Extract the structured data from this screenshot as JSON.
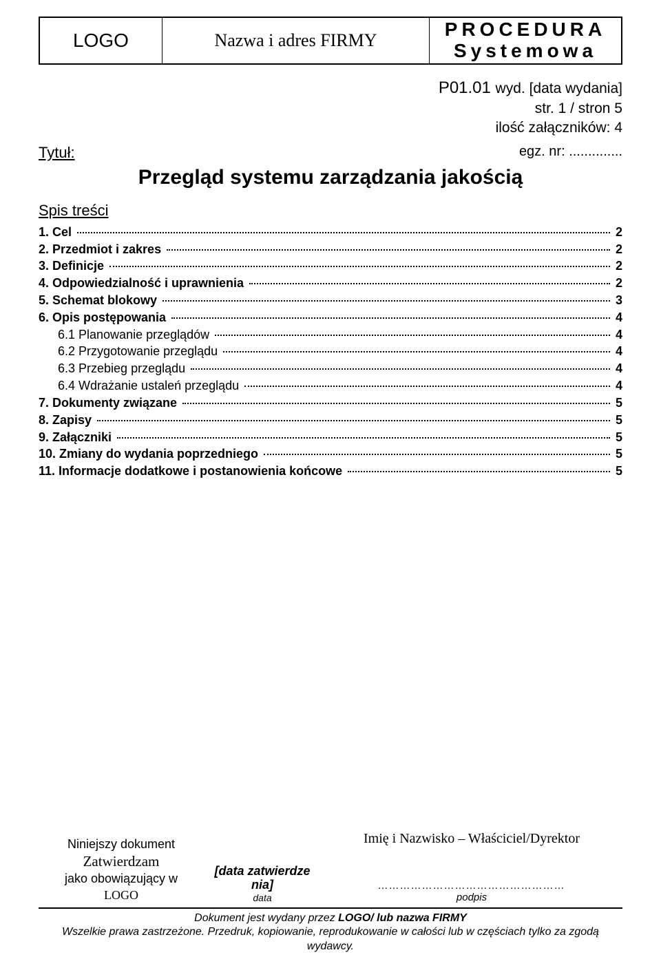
{
  "header": {
    "logo": "LOGO",
    "company": "Nazwa i adres FIRMY",
    "right_line1": "PROCEDURA",
    "right_line2": "Systemowa"
  },
  "meta": {
    "doc_no_prefix": "P01.01 ",
    "wyd_label": "wyd. ",
    "wyd_value": "[data wydania]",
    "page_line": "str. 1 / stron 5",
    "attachments_line": "ilość załączników: 4"
  },
  "title_block": {
    "tytul_label": "Tytuł:",
    "egz_label": "egz. nr: ..............",
    "main_title": "Przegląd systemu zarządzania jakością",
    "spis_label": "Spis treści"
  },
  "toc": [
    {
      "label": "1. Cel",
      "page": "2",
      "level": "top"
    },
    {
      "label": "2. Przedmiot i zakres",
      "page": "2",
      "level": "top"
    },
    {
      "label": "3. Definicje",
      "page": "2",
      "level": "top"
    },
    {
      "label": "4. Odpowiedzialność i uprawnienia",
      "page": "2",
      "level": "top"
    },
    {
      "label": "5. Schemat blokowy",
      "page": "3",
      "level": "top"
    },
    {
      "label": "6. Opis postępowania",
      "page": "4",
      "level": "top"
    },
    {
      "label": "6.1 Planowanie przeglądów",
      "page": "4",
      "level": "sub"
    },
    {
      "label": "6.2 Przygotowanie przeglądu",
      "page": "4",
      "level": "sub"
    },
    {
      "label": "6.3 Przebieg przeglądu",
      "page": "4",
      "level": "sub"
    },
    {
      "label": "6.4 Wdrażanie ustaleń przeglądu",
      "page": "4",
      "level": "sub"
    },
    {
      "label": "7. Dokumenty związane",
      "page": "5",
      "level": "top"
    },
    {
      "label": "8. Zapisy",
      "page": "5",
      "level": "top"
    },
    {
      "label": "9. Załączniki",
      "page": "5",
      "level": "top"
    },
    {
      "label": "10. Zmiany do wydania poprzedniego",
      "page": "5",
      "level": "top"
    },
    {
      "label": "11. Informacje dodatkowe i postanowienia końcowe",
      "page": "5",
      "level": "top"
    }
  ],
  "approval": {
    "left_line1": "Niniejszy dokument",
    "left_line2": "Zatwierdzam",
    "left_line3": "jako obowiązujący w",
    "left_line4": "LOGO",
    "mid_placeholder": "[data zatwierdze nia]",
    "mid_label": "data",
    "right_name": "Imię i Nazwisko – Właściciel/Dyrektor",
    "sig_line": "……………………………………………",
    "sig_caption": "podpis"
  },
  "footer": {
    "line1_pre": "Dokument jest wydany przez  ",
    "line1_bold": "LOGO/ lub nazwa FIRMY",
    "line2": "Wszelkie prawa zastrzeżone. Przedruk, kopiowanie, reprodukowanie w całości lub w częściach tylko za zgodą wydawcy."
  }
}
